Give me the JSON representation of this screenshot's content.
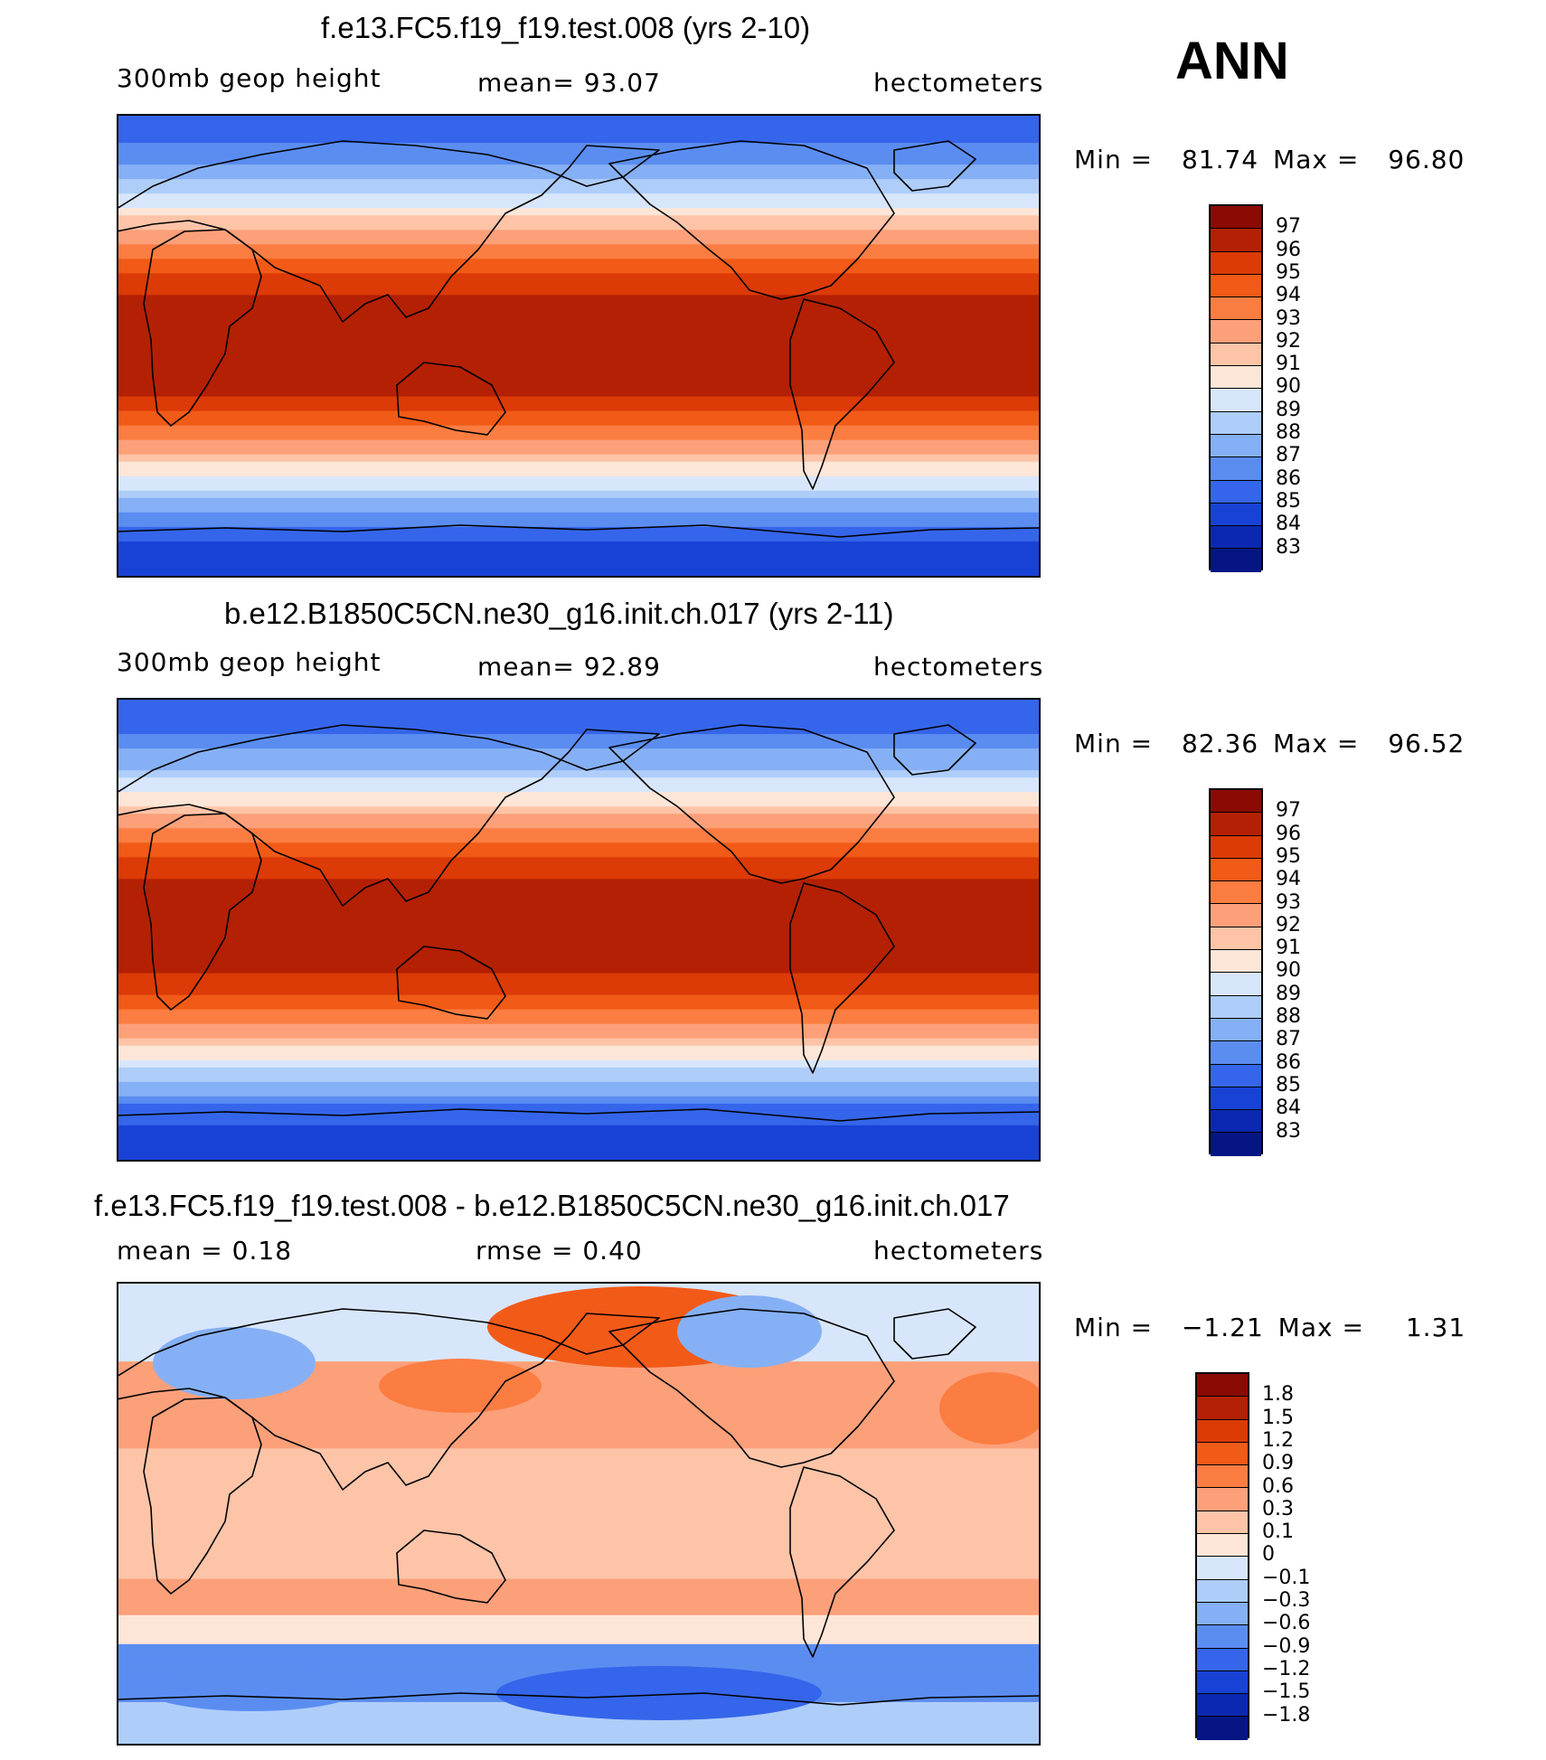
{
  "season": "ANN",
  "panels": [
    {
      "title": "f.e13.FC5.f19_f19.test.008 (yrs 2-10)",
      "left_label": "300mb  geop  height",
      "center_label": "mean=   93.07",
      "units": "hectometers",
      "min_label": "Min =",
      "min_value": "81.74",
      "max_label": "Max =",
      "max_value": "96.80",
      "field_type": "absolute",
      "colorbar_levels": [
        "97",
        "96",
        "95",
        "94",
        "93",
        "92",
        "91",
        "90",
        "89",
        "88",
        "87",
        "86",
        "85",
        "84",
        "83"
      ],
      "colorbar_colors": [
        "#8b0a04",
        "#b42003",
        "#dc3a07",
        "#f25a18",
        "#fb7d42",
        "#fca07a",
        "#fdc4a8",
        "#fde6d7",
        "#d8e6fb",
        "#aecdf8",
        "#86b0f5",
        "#5b8df1",
        "#3565ea",
        "#1842d6",
        "#0a28b2",
        "#051684"
      ]
    },
    {
      "title": "b.e12.B1850C5CN.ne30_g16.init.ch.017 (yrs 2-11)",
      "left_label": "300mb  geop  height",
      "center_label": "mean=   92.89",
      "units": "hectometers",
      "min_label": "Min =",
      "min_value": "82.36",
      "max_label": "Max =",
      "max_value": "96.52",
      "field_type": "absolute",
      "colorbar_levels": [
        "97",
        "96",
        "95",
        "94",
        "93",
        "92",
        "91",
        "90",
        "89",
        "88",
        "87",
        "86",
        "85",
        "84",
        "83"
      ],
      "colorbar_colors": [
        "#8b0a04",
        "#b42003",
        "#dc3a07",
        "#f25a18",
        "#fb7d42",
        "#fca07a",
        "#fdc4a8",
        "#fde6d7",
        "#d8e6fb",
        "#aecdf8",
        "#86b0f5",
        "#5b8df1",
        "#3565ea",
        "#1842d6",
        "#0a28b2",
        "#051684"
      ]
    },
    {
      "title": "f.e13.FC5.f19_f19.test.008 - b.e12.B1850C5CN.ne30_g16.init.ch.017",
      "left_label": "mean =     0.18",
      "center_label": "rmse =     0.40",
      "units": "hectometers",
      "min_label": "Min =",
      "min_value": "−1.21",
      "max_label": "Max =",
      "max_value": "1.31",
      "field_type": "difference",
      "colorbar_levels": [
        "1.8",
        "1.5",
        "1.2",
        "0.9",
        "0.6",
        "0.3",
        "0.1",
        "0",
        "−0.1",
        "−0.3",
        "−0.6",
        "−0.9",
        "−1.2",
        "−1.5",
        "−1.8"
      ],
      "colorbar_colors": [
        "#8b0a04",
        "#b42003",
        "#dc3a07",
        "#f25a18",
        "#fb7d42",
        "#fca07a",
        "#fdc4a8",
        "#fde6d7",
        "#d8e6fb",
        "#aecdf8",
        "#86b0f5",
        "#5b8df1",
        "#3565ea",
        "#1842d6",
        "#0a28b2",
        "#051684"
      ]
    }
  ]
}
